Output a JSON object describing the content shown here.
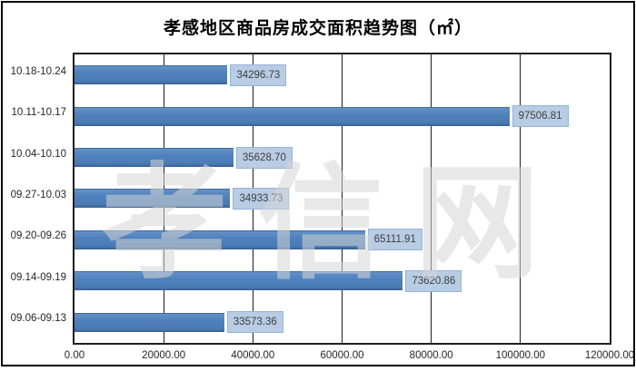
{
  "chart_data": {
    "type": "bar",
    "orientation": "horizontal",
    "title": "孝感地区商品房成交面积趋势图（㎡）",
    "categories": [
      "10.18-10.24",
      "10.11-10.17",
      "10.04-10.10",
      "09.27-10.03",
      "09.20-09.26",
      "09.14-09.19",
      "09.06-09.13"
    ],
    "values": [
      34296.73,
      97506.81,
      35628.7,
      34933.73,
      65111.91,
      73620.86,
      33573.36
    ],
    "value_labels": [
      "34296.73",
      "97506.81",
      "35628.70",
      "34933.73",
      "65111.91",
      "73620.86",
      "33573.36"
    ],
    "xlabel": "",
    "ylabel": "",
    "xlim": [
      0,
      120000
    ],
    "x_ticks": [
      "0.00",
      "20000.00",
      "40000.00",
      "60000.00",
      "80000.00",
      "100000.00",
      "120000.00"
    ],
    "x_tick_values": [
      0,
      20000,
      40000,
      60000,
      80000,
      100000,
      120000
    ],
    "grid": "vertical",
    "legend": "none",
    "watermark": "孝信网",
    "colors": {
      "bar_fill": "#4f81bd",
      "bar_border": "#3a6a9e",
      "value_label_fill": "#b8cce4",
      "value_label_border": "#95b3d7",
      "gridline": "#1f1f1f",
      "plot_border": "#1f1f1f",
      "axis_text": "#262626",
      "title_text": "#000000",
      "watermark_gray": "#e9e9e9"
    }
  }
}
